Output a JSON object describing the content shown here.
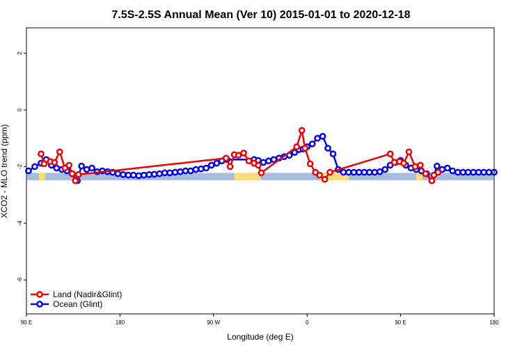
{
  "chart_data": {
    "type": "line",
    "title": "7.5S-2.5S Annual Mean (Ver 10)   2015-01-01 to 2020-12-18",
    "xlabel": "Longitude (deg E)",
    "ylabel": "XCO2 - MLO trend (ppm)",
    "xlim": [
      90,
      540
    ],
    "ylim": [
      -7.2,
      2.9
    ],
    "x_ticks": [
      {
        "value": 90,
        "label": "90 E"
      },
      {
        "value": 180,
        "label": "180"
      },
      {
        "value": 270,
        "label": "90 W"
      },
      {
        "value": 360,
        "label": "0"
      },
      {
        "value": 450,
        "label": "90 E"
      },
      {
        "value": 540,
        "label": "180"
      }
    ],
    "y_ticks": [
      {
        "value": -6,
        "label": "-6"
      },
      {
        "value": -4,
        "label": "-4"
      },
      {
        "value": -2,
        "label": "-2"
      },
      {
        "value": 0,
        "label": "0"
      },
      {
        "value": 2,
        "label": "2"
      }
    ],
    "grid": false,
    "legend_position": "bottom-left",
    "land_strip": {
      "y_top": -2.22,
      "y_bottom": -2.48,
      "ocean_color": "#a6bddb",
      "land_color": "#fddc7a",
      "land_ranges": [
        [
          102,
          108
        ],
        [
          290,
          315
        ],
        [
          372,
          400
        ],
        [
          465,
          471
        ]
      ]
    },
    "series": [
      {
        "name": "Land (Nadir&Glint)",
        "color": "#ee0000",
        "x": [
          104,
          107,
          113,
          117,
          122,
          127,
          131,
          134,
          137,
          140,
          282,
          286,
          290,
          294,
          299,
          304,
          309,
          313,
          316,
          350,
          355,
          358,
          363,
          368,
          372,
          377,
          382,
          440,
          444,
          449,
          453,
          458,
          464,
          469,
          474,
          480,
          482,
          486
        ],
        "y": [
          -1.55,
          -1.9,
          -1.82,
          -1.85,
          -1.48,
          -2.05,
          -1.95,
          -2.25,
          -2.5,
          -2.28,
          -1.7,
          -2.0,
          -1.58,
          -1.6,
          -1.52,
          -1.8,
          -1.88,
          -1.95,
          -2.22,
          -1.3,
          -0.72,
          -1.35,
          -1.9,
          -2.2,
          -2.3,
          -2.45,
          -2.2,
          -1.55,
          -1.85,
          -1.82,
          -1.88,
          -1.48,
          -2.0,
          -1.95,
          -2.25,
          -2.5,
          -2.3,
          -2.2
        ]
      },
      {
        "name": "Ocean (Glint)",
        "color": "#0000ee",
        "x": [
          92,
          98,
          104,
          109,
          114,
          119,
          124,
          129,
          134,
          139,
          143,
          148,
          153,
          158,
          163,
          168,
          173,
          178,
          183,
          188,
          193,
          198,
          203,
          208,
          213,
          218,
          223,
          228,
          233,
          238,
          243,
          248,
          253,
          258,
          263,
          268,
          273,
          278,
          283,
          309,
          313,
          318,
          323,
          328,
          333,
          338,
          343,
          348,
          352,
          356,
          360,
          365,
          370,
          375,
          380,
          385,
          390,
          395,
          400,
          405,
          410,
          415,
          420,
          425,
          430,
          435,
          440,
          445,
          450,
          455,
          460,
          465,
          470,
          475,
          480,
          485,
          490,
          495,
          500,
          505,
          510,
          515,
          520,
          525,
          530,
          535,
          540
        ],
        "y": [
          -2.15,
          -2.0,
          -1.88,
          -1.75,
          -1.95,
          -2.05,
          -2.1,
          -2.15,
          -2.25,
          -2.5,
          -1.98,
          -2.1,
          -2.05,
          -2.18,
          -2.15,
          -2.18,
          -2.2,
          -2.25,
          -2.28,
          -2.3,
          -2.3,
          -2.32,
          -2.3,
          -2.28,
          -2.27,
          -2.25,
          -2.22,
          -2.22,
          -2.2,
          -2.18,
          -2.15,
          -2.15,
          -2.1,
          -2.08,
          -2.05,
          -1.95,
          -1.88,
          -1.8,
          -1.75,
          -1.75,
          -1.78,
          -1.85,
          -1.8,
          -1.75,
          -1.7,
          -1.65,
          -1.6,
          -1.5,
          -1.4,
          -1.38,
          -1.3,
          -1.2,
          -1.0,
          -0.93,
          -1.35,
          -1.55,
          -2.1,
          -2.2,
          -2.2,
          -2.2,
          -2.2,
          -2.2,
          -2.2,
          -2.2,
          -2.18,
          -2.1,
          -1.95,
          -1.85,
          -1.78,
          -1.95,
          -2.05,
          -2.1,
          -2.15,
          -2.25,
          -2.5,
          -1.98,
          -2.1,
          -2.05,
          -2.15,
          -2.2,
          -2.2,
          -2.2,
          -2.2,
          -2.2,
          -2.2,
          -2.2,
          -2.2
        ]
      }
    ]
  }
}
